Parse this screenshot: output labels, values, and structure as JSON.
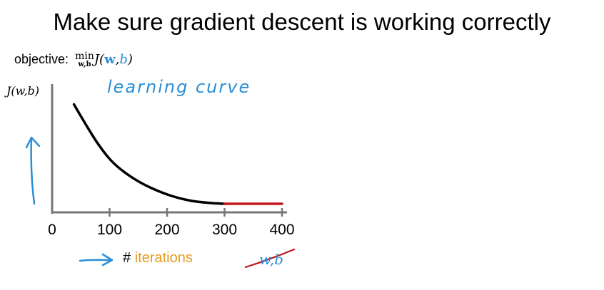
{
  "title": "Make sure gradient descent is working correctly",
  "objective": {
    "label": "objective:",
    "min": "min",
    "min_sub": "w,b",
    "func": "J(",
    "w": "w",
    "comma": ",",
    "b": "b",
    "close": ")"
  },
  "chart_data": {
    "type": "line",
    "title": "",
    "ylabel": "J(w,b)",
    "xlabel": "# iterations",
    "x_ticks": [
      0,
      100,
      200,
      300,
      400
    ],
    "xlim": [
      0,
      400
    ],
    "ylim": [
      0,
      1
    ],
    "grid": false,
    "annotations": [
      "learning curve",
      "w,b"
    ],
    "series": [
      {
        "name": "",
        "color": "#000000",
        "x": [
          38,
          60,
          80,
          100,
          120,
          150,
          180,
          210,
          240,
          270,
          300
        ],
        "y": [
          0.95,
          0.75,
          0.58,
          0.44,
          0.34,
          0.23,
          0.15,
          0.09,
          0.05,
          0.03,
          0.02
        ]
      },
      {
        "name": "",
        "color": "#c0171c",
        "x": [
          300,
          400
        ],
        "y": [
          0.02,
          0.02
        ]
      }
    ]
  },
  "annotations": {
    "curve_caption": "learning curve",
    "struck_text": "w,b"
  },
  "colors": {
    "accent_blue": "#2a8fd6",
    "accent_orange": "#e69a1e",
    "converged_red": "#c0171c"
  }
}
